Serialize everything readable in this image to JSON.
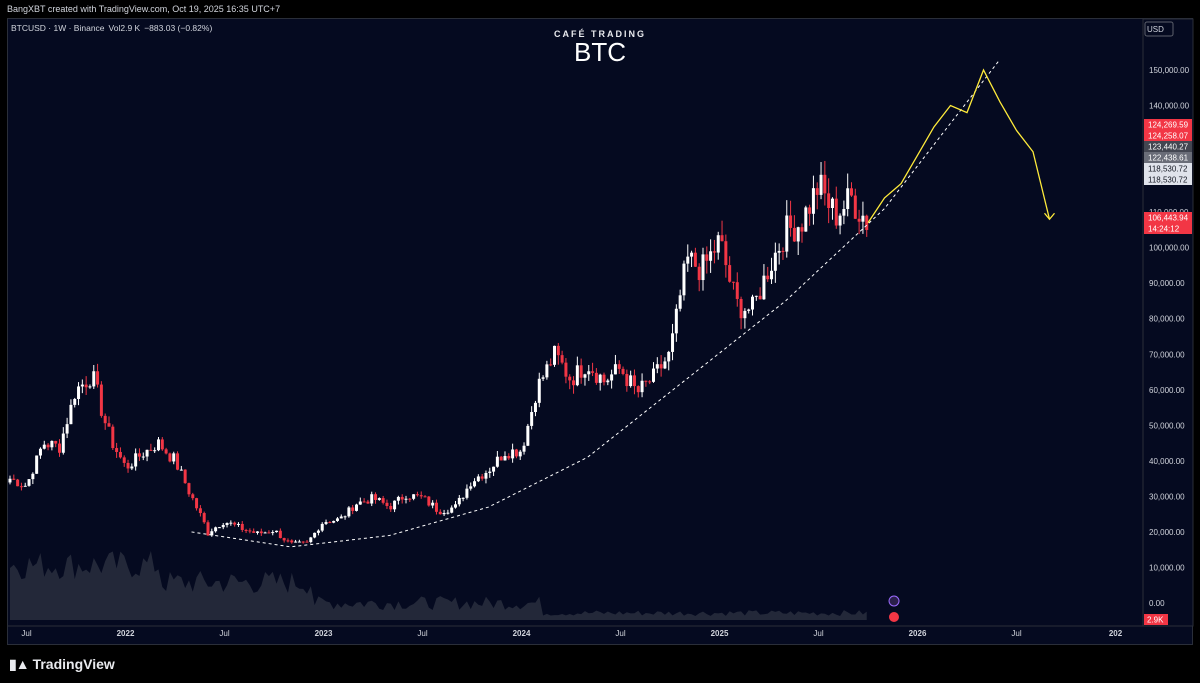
{
  "header": {
    "attribution": "BangXBT created with TradingView.com, Oct 19, 2025 16:35 UTC+7"
  },
  "legend": {
    "symbol": "BTCUSD · 1W · Binance",
    "vol_label": "Vol",
    "vol_value": "2.9 K",
    "change": "−883.03 (−0.82%)"
  },
  "brand": {
    "small": "CAFÉ TRADING",
    "big": "BTC"
  },
  "footer": {
    "logo_text": "TradingView"
  },
  "colors": {
    "background": "#050a20",
    "up_candle": "#ffffff",
    "down_candle": "#f23645",
    "projection": "#ffeb3b",
    "trendline": "#ffffff",
    "volume_area": "#5d606b"
  },
  "chart_data": {
    "type": "candlestick",
    "timeframe": "1W",
    "y_axis": {
      "currency": "USD",
      "ticks": [
        "150,000.00",
        "140,000.00",
        "110,000.00",
        "100,000.00",
        "90,000.00",
        "80,000.00",
        "70,000.00",
        "60,000.00",
        "50,000.00",
        "40,000.00",
        "30,000.00",
        "20,000.00",
        "10,000.00",
        "0.00"
      ],
      "range": [
        0,
        157000
      ]
    },
    "x_axis": {
      "ticks": [
        "Jul",
        "2022",
        "Jul",
        "2023",
        "Jul",
        "2024",
        "Jul",
        "2025",
        "Jul",
        "2026",
        "Jul",
        "202"
      ]
    },
    "price_labels": [
      {
        "text": "124,269.59",
        "color": "#f23645"
      },
      {
        "text": "124,258.07",
        "color": "#f23645"
      },
      {
        "text": "123,440.27",
        "color": "#434651"
      },
      {
        "text": "122,438.61",
        "color": "#6a6d78"
      },
      {
        "text": "118,530.72",
        "color": "#e0e3eb"
      },
      {
        "text": "118,530.72",
        "color": "#e0e3eb"
      },
      {
        "text": "106,443.94",
        "color": "#f23645"
      },
      {
        "text": "14:24:12",
        "color": "#f23645"
      }
    ],
    "volume_label": "2.9K",
    "series": [
      {
        "name": "price",
        "anchors": [
          [
            "2021-06",
            35000
          ],
          [
            "2021-07",
            33000
          ],
          [
            "2021-08",
            45000
          ],
          [
            "2021-09",
            44000
          ],
          [
            "2021-10",
            60000
          ],
          [
            "2021-11",
            64000
          ],
          [
            "2021-12",
            47000
          ],
          [
            "2022-01",
            38000
          ],
          [
            "2022-02",
            42000
          ],
          [
            "2022-03",
            45000
          ],
          [
            "2022-04",
            40000
          ],
          [
            "2022-05",
            30000
          ],
          [
            "2022-06",
            20000
          ],
          [
            "2022-07",
            23000
          ],
          [
            "2022-08",
            21000
          ],
          [
            "2022-09",
            19500
          ],
          [
            "2022-10",
            20500
          ],
          [
            "2022-11",
            16500
          ],
          [
            "2022-12",
            16800
          ],
          [
            "2023-01",
            23000
          ],
          [
            "2023-02",
            23500
          ],
          [
            "2023-03",
            28000
          ],
          [
            "2023-04",
            29500
          ],
          [
            "2023-05",
            27000
          ],
          [
            "2023-06",
            30500
          ],
          [
            "2023-07",
            29500
          ],
          [
            "2023-08",
            26000
          ],
          [
            "2023-09",
            27000
          ],
          [
            "2023-10",
            34500
          ],
          [
            "2023-11",
            37500
          ],
          [
            "2023-12",
            42500
          ],
          [
            "2024-01",
            43000
          ],
          [
            "2024-02",
            61000
          ],
          [
            "2024-03",
            70000
          ],
          [
            "2024-04",
            63000
          ],
          [
            "2024-05",
            67500
          ],
          [
            "2024-06",
            62500
          ],
          [
            "2024-07",
            66000
          ],
          [
            "2024-08",
            59000
          ],
          [
            "2024-09",
            63500
          ],
          [
            "2024-10",
            70000
          ],
          [
            "2024-11",
            96500
          ],
          [
            "2024-12",
            94000
          ],
          [
            "2025-01",
            102000
          ],
          [
            "2025-02",
            84000
          ],
          [
            "2025-03",
            82500
          ],
          [
            "2025-04",
            94500
          ],
          [
            "2025-05",
            104500
          ],
          [
            "2025-06",
            107500
          ],
          [
            "2025-07",
            117500
          ],
          [
            "2025-08",
            109000
          ],
          [
            "2025-09",
            114000
          ],
          [
            "2025-10",
            107000
          ]
        ]
      },
      {
        "name": "projection",
        "points": [
          [
            "2025-10",
            107000
          ],
          [
            "2025-11",
            114000
          ],
          [
            "2025-12",
            118000
          ],
          [
            "2026-01",
            126000
          ],
          [
            "2026-02",
            134000
          ],
          [
            "2026-03",
            140000
          ],
          [
            "2026-04",
            138000
          ],
          [
            "2026-05",
            150000
          ],
          [
            "2026-06",
            141000
          ],
          [
            "2026-07",
            133000
          ],
          [
            "2026-08",
            127000
          ],
          [
            "2026-09",
            108000
          ]
        ]
      },
      {
        "name": "trendline",
        "points": [
          [
            "2022-05",
            20000
          ],
          [
            "2022-11",
            15800
          ],
          [
            "2023-05",
            19000
          ],
          [
            "2023-11",
            27000
          ],
          [
            "2024-05",
            41000
          ],
          [
            "2024-11",
            63000
          ],
          [
            "2025-05",
            85000
          ],
          [
            "2025-11",
            111000
          ],
          [
            "2026-06",
            153000
          ]
        ]
      }
    ]
  }
}
